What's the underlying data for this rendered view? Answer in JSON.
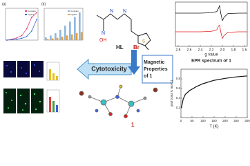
{
  "panel_a": {
    "label": "(a)",
    "ylim": [
      0,
      70
    ],
    "series": [
      {
        "name": "Complex",
        "color": "#e0407a",
        "values": [
          0,
          2,
          5,
          10,
          25,
          50,
          60
        ]
      },
      {
        "name": "Ligand",
        "color": "#3a6fd0",
        "values": [
          0,
          1,
          2,
          4,
          8,
          20,
          45
        ]
      }
    ]
  },
  "panel_b": {
    "label": "(b)",
    "ylim": [
      0,
      55
    ],
    "series": [
      {
        "name": "Complex",
        "color": "#8fb8e0",
        "values": [
          5,
          8,
          12,
          18,
          25,
          32,
          40,
          48
        ]
      },
      {
        "name": "Ligand",
        "color": "#e8a040",
        "values": [
          2,
          3,
          4,
          6,
          8,
          10,
          12,
          14
        ]
      }
    ]
  },
  "structure": {
    "ligand_label": "HL",
    "bromo_label": "Br",
    "atoms": [
      "N",
      "N",
      "N",
      "OH",
      "S"
    ]
  },
  "cytotoxicity": "Cytotoxicity",
  "magnetic_box": [
    "Magnetic",
    "Properties",
    "of 1"
  ],
  "complex_label": "1",
  "epr": {
    "xlabel": "g value",
    "caption": "EPR spectrum of 1",
    "xlim": [
      2.85,
      1.55
    ],
    "ylim": [
      -1,
      1
    ],
    "xticks": [
      2.8,
      2.6,
      2.4,
      2.2,
      {
        "value": 2,
        "label": "2.0"
      },
      1.8,
      1.6
    ],
    "series": [
      {
        "color": "#111111",
        "x": [
          2.4,
          2.2,
          2.1,
          2.07,
          2.05,
          2.03,
          2.0,
          1.97,
          1.9,
          1.7
        ],
        "values": [
          0,
          0.05,
          0.2,
          0.6,
          0.9,
          0,
          -0.9,
          -0.5,
          -0.05,
          0
        ]
      },
      {
        "color": "#e02020",
        "x": [
          2.4,
          2.2,
          2.1,
          2.07,
          2.05,
          2.03,
          2.0,
          1.97,
          1.9,
          1.7
        ],
        "values": [
          0,
          0.05,
          0.25,
          0.7,
          0.8,
          0,
          -0.8,
          -0.45,
          -0.05,
          0
        ]
      }
    ]
  },
  "susceptibility": {
    "xlabel": "T (K)",
    "ylabel": "χmT (cm3 K mol-1)",
    "xlim": [
      0,
      300
    ],
    "ylim": [
      0,
      1
    ],
    "xticks": [
      0,
      50,
      100,
      150,
      200,
      250,
      300
    ],
    "yticks": [
      0.2,
      0.4,
      0.6,
      0.8
    ],
    "x": [
      2,
      10,
      20,
      40,
      70,
      100,
      150,
      200,
      250,
      300
    ],
    "values": [
      0.2,
      0.38,
      0.48,
      0.56,
      0.64,
      0.7,
      0.77,
      0.81,
      0.84,
      0.86
    ]
  }
}
